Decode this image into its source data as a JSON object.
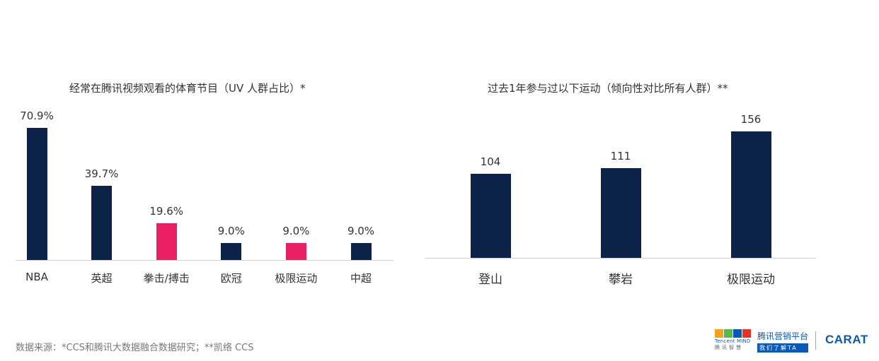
{
  "chart_data": [
    {
      "type": "bar",
      "title": "经常在腾讯视频观看的体育节目（UV 人群占比）*",
      "categories": [
        "NBA",
        "英超",
        "拳击/搏击",
        "欧冠",
        "极限运动",
        "中超"
      ],
      "values": [
        70.9,
        39.7,
        19.6,
        9.0,
        9.0,
        9.0
      ],
      "value_labels": [
        "70.9%",
        "39.7%",
        "19.6%",
        "9.0%",
        "9.0%",
        "9.0%"
      ],
      "unit": "%",
      "bar_colors": [
        "#0d2248",
        "#0d2248",
        "#e91e63",
        "#0d2248",
        "#e91e63",
        "#0d2248"
      ],
      "ylim": [
        0,
        75
      ],
      "xlabel": "",
      "ylabel": "",
      "grid": false
    },
    {
      "type": "bar",
      "title": "过去1年参与过以下运动（倾向性对比所有人群）**",
      "categories": [
        "登山",
        "攀岩",
        "极限运动"
      ],
      "values": [
        104,
        111,
        156
      ],
      "value_labels": [
        "104",
        "111",
        "156"
      ],
      "bar_colors": [
        "#0d2248",
        "#0d2248",
        "#0d2248"
      ],
      "ylim": [
        0,
        165
      ],
      "xlabel": "",
      "ylabel": "",
      "grid": false
    }
  ],
  "footer": {
    "source": "数据来源：*CCS和腾讯大数据融合数据研究；**凯络 CCS"
  },
  "logos": {
    "mind_sub1": "Tencent MIND",
    "mind_sub2": "腾讯智慧",
    "tencent_platform": "腾讯营销平台",
    "tencent_tagline": "我们了解TA",
    "carat": "CARAT"
  },
  "colors": {
    "navy": "#0d2248",
    "pink": "#e91e63",
    "brand_blue": "#0a58b8"
  }
}
